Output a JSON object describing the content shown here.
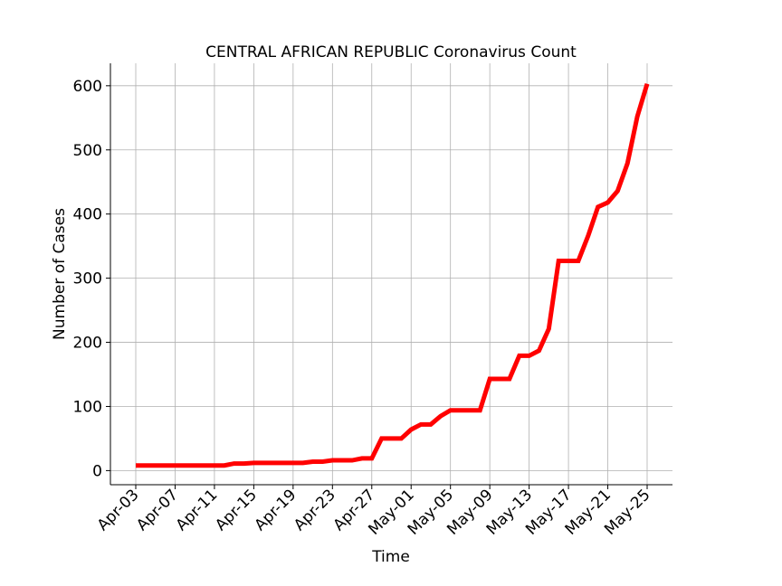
{
  "chart_data": {
    "type": "line",
    "title": "CENTRAL AFRICAN REPUBLIC Coronavirus Count",
    "xlabel": "Time",
    "ylabel": "Number of Cases",
    "ylim": [
      -22,
      635
    ],
    "yticks": [
      0,
      100,
      200,
      300,
      400,
      500,
      600
    ],
    "x_tick_labels": [
      "Apr-03",
      "Apr-07",
      "Apr-11",
      "Apr-15",
      "Apr-19",
      "Apr-23",
      "Apr-27",
      "May-01",
      "May-05",
      "May-09",
      "May-13",
      "May-17",
      "May-21",
      "May-25"
    ],
    "grid": true,
    "line_color": "#ff0000",
    "series": [
      {
        "x": [
          "Apr-03",
          "Apr-04",
          "Apr-05",
          "Apr-06",
          "Apr-07",
          "Apr-08",
          "Apr-09",
          "Apr-10",
          "Apr-11",
          "Apr-12",
          "Apr-13",
          "Apr-14",
          "Apr-15",
          "Apr-16",
          "Apr-17",
          "Apr-18",
          "Apr-19",
          "Apr-20",
          "Apr-21",
          "Apr-22",
          "Apr-23",
          "Apr-24",
          "Apr-25",
          "Apr-26",
          "Apr-27",
          "Apr-28",
          "Apr-29",
          "Apr-30",
          "May-01",
          "May-02",
          "May-03",
          "May-04",
          "May-05",
          "May-06",
          "May-07",
          "May-08",
          "May-09",
          "May-10",
          "May-11",
          "May-12",
          "May-13",
          "May-14",
          "May-15",
          "May-16",
          "May-17",
          "May-18",
          "May-19",
          "May-20",
          "May-21",
          "May-22",
          "May-23",
          "May-24",
          "May-25"
        ],
        "values": [
          8,
          8,
          8,
          8,
          8,
          8,
          8,
          8,
          8,
          8,
          11,
          11,
          12,
          12,
          12,
          12,
          12,
          12,
          14,
          14,
          16,
          16,
          16,
          19,
          19,
          50,
          50,
          50,
          64,
          72,
          72,
          85,
          94,
          94,
          94,
          94,
          143,
          143,
          143,
          179,
          179,
          187,
          221,
          327,
          327,
          327,
          366,
          411,
          418,
          436,
          479,
          552,
          603
        ]
      }
    ]
  }
}
